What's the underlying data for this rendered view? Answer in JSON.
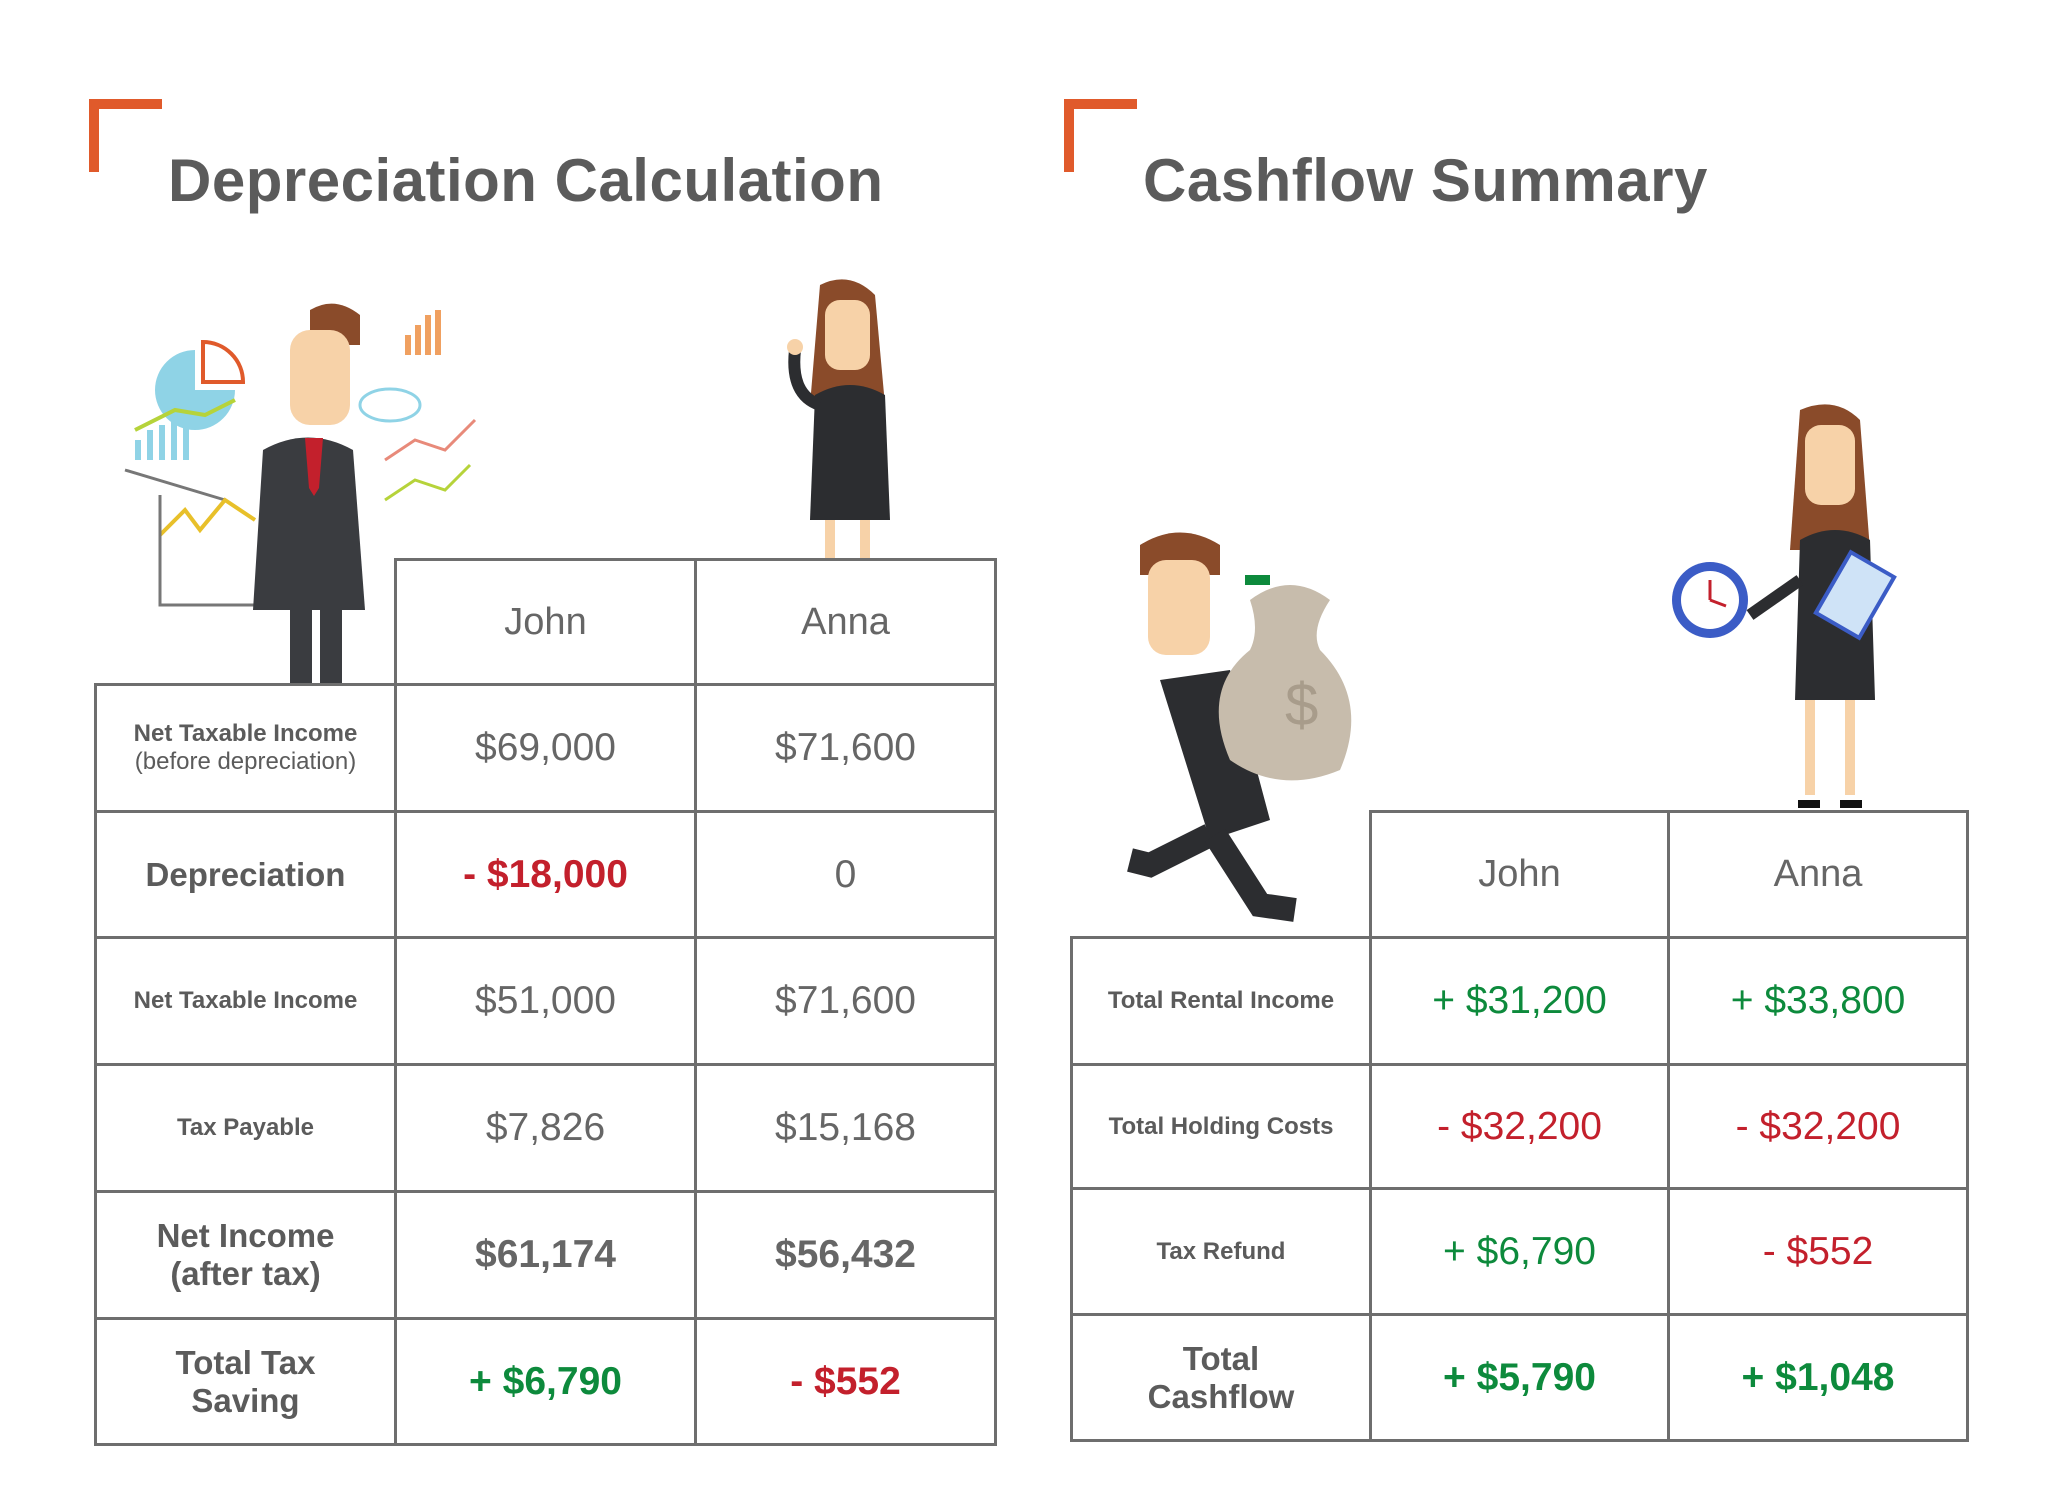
{
  "colors": {
    "accent": "#e05a2b",
    "text": "#5b5b5b",
    "positive": "#0d8a3c",
    "negative": "#c3202c",
    "border": "#6e6e6e"
  },
  "depreciation": {
    "title": "Depreciation Calculation",
    "columns": [
      "John",
      "Anna"
    ],
    "rows": [
      {
        "label": "Net Taxable Income",
        "sublabel": "(before depreciation)",
        "values": [
          "$69,000",
          "$71,600"
        ],
        "tones": [
          "neutral",
          "neutral"
        ],
        "bold": false
      },
      {
        "label": "Depreciation",
        "values": [
          "- $18,000",
          "0"
        ],
        "tones": [
          "negative",
          "neutral"
        ],
        "bold": false,
        "label_big": true,
        "value_bold": [
          true,
          false
        ]
      },
      {
        "label": "Net Taxable Income",
        "values": [
          "$51,000",
          "$71,600"
        ],
        "tones": [
          "neutral",
          "neutral"
        ],
        "bold": false
      },
      {
        "label": "Tax Payable",
        "values": [
          "$7,826",
          "$15,168"
        ],
        "tones": [
          "neutral",
          "neutral"
        ],
        "bold": false
      },
      {
        "label": "Net Income (after tax)",
        "values": [
          "$61,174",
          "$56,432"
        ],
        "tones": [
          "neutral",
          "neutral"
        ],
        "bold": true,
        "label_big": true
      },
      {
        "label": "Total Tax Saving",
        "values": [
          "+ $6,790",
          "- $552"
        ],
        "tones": [
          "positive",
          "negative"
        ],
        "bold": true,
        "label_big": true
      }
    ]
  },
  "cashflow": {
    "title": "Cashflow Summary",
    "columns": [
      "John",
      "Anna"
    ],
    "rows": [
      {
        "label": "Total Rental Income",
        "values": [
          "+ $31,200",
          "+ $33,800"
        ],
        "tones": [
          "positive",
          "positive"
        ],
        "bold": false
      },
      {
        "label": "Total Holding Costs",
        "values": [
          "- $32,200",
          "- $32,200"
        ],
        "tones": [
          "negative",
          "negative"
        ],
        "bold": false
      },
      {
        "label": "Tax Refund",
        "values": [
          "+ $6,790",
          "- $552"
        ],
        "tones": [
          "positive",
          "negative"
        ],
        "bold": false
      },
      {
        "label": "Total Cashflow",
        "values": [
          "+ $5,790",
          "+ $1,048"
        ],
        "tones": [
          "positive",
          "positive"
        ],
        "bold": true,
        "label_big": true
      }
    ]
  },
  "illustrations": [
    "businessman-with-charts",
    "businesswoman-pointing",
    "businessman-carrying-money-bag",
    "businesswoman-with-stopwatch-and-clipboard"
  ]
}
